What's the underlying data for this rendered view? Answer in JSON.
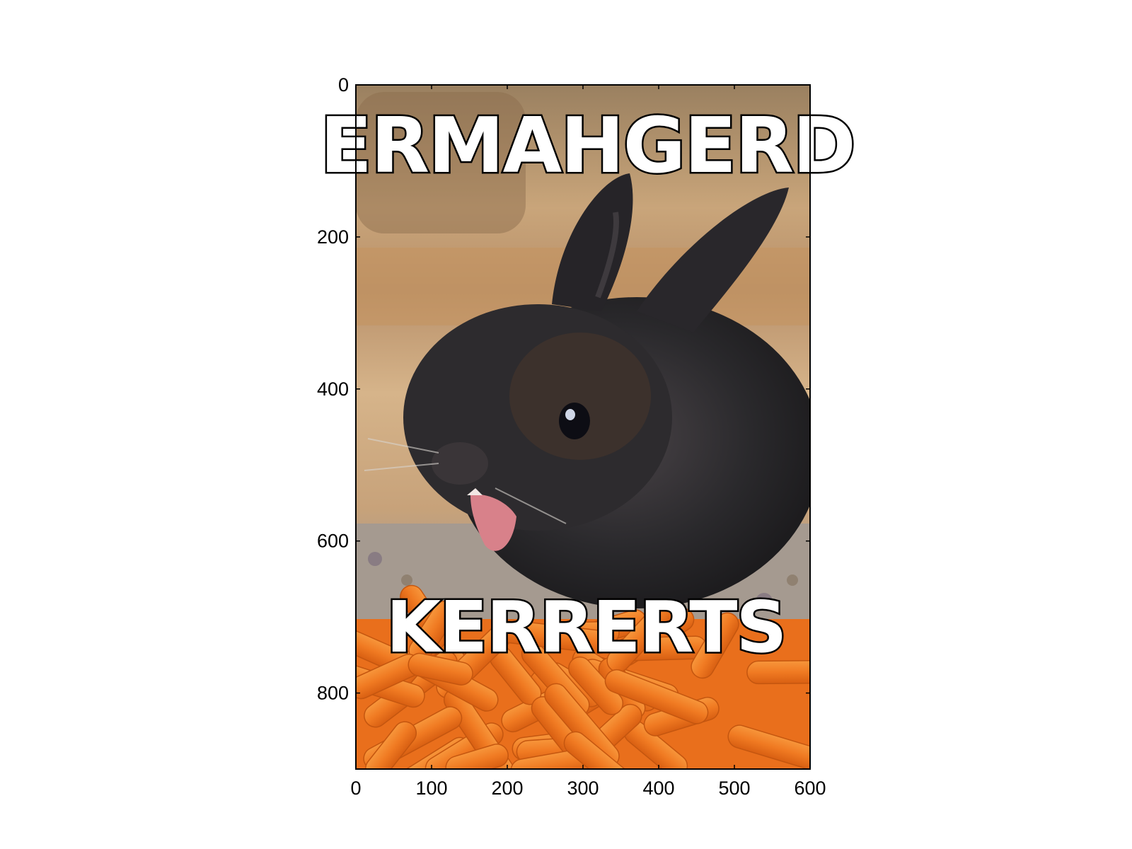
{
  "figure": {
    "top_caption": "ERMAHGERD",
    "bottom_caption": "KERRERTS",
    "subject_icon": "rabbit-icon",
    "colors": {
      "rabbit_fur": "#2b2a2e",
      "carrot": "#f07a22",
      "background_wood": "#b98c5c",
      "caption_fill": "#ffffff",
      "caption_stroke": "#000000"
    }
  },
  "axes": {
    "x_range": [
      0,
      600
    ],
    "y_range": [
      0,
      900
    ],
    "y_inverted": true,
    "x_ticks": [
      0,
      100,
      200,
      300,
      400,
      500,
      600
    ],
    "y_ticks": [
      0,
      200,
      400,
      600,
      800
    ],
    "x_tick_labels": [
      "0",
      "100",
      "200",
      "300",
      "400",
      "500",
      "600"
    ],
    "y_tick_labels": [
      "0",
      "200",
      "400",
      "600",
      "800"
    ]
  }
}
